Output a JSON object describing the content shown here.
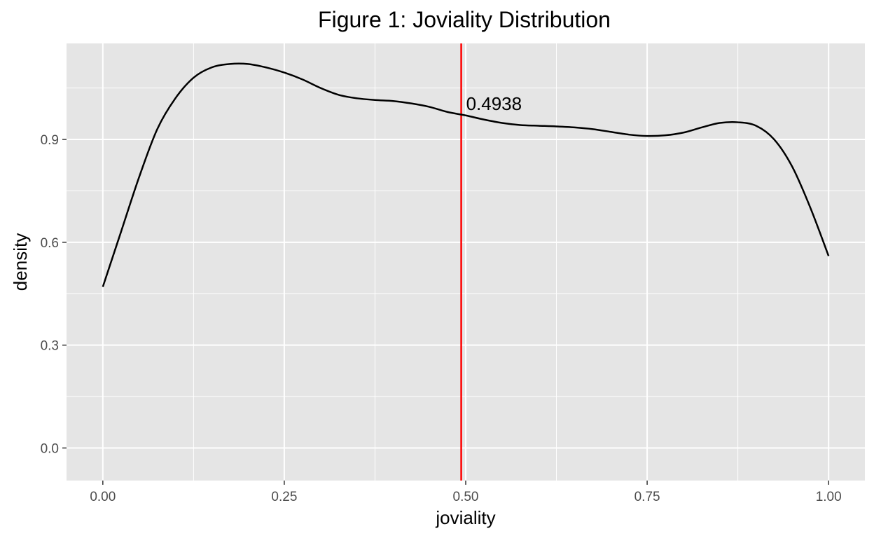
{
  "chart_data": {
    "type": "line",
    "title": "Figure 1: Joviality Distribution",
    "xlabel": "joviality",
    "ylabel": "density",
    "xlim": [
      -0.05,
      1.05
    ],
    "ylim": [
      -0.095,
      1.18
    ],
    "x_ticks": [
      0.0,
      0.25,
      0.5,
      0.75,
      1.0
    ],
    "x_tick_labels": [
      "0.00",
      "0.25",
      "0.50",
      "0.75",
      "1.00"
    ],
    "x_minor_ticks": [
      0.125,
      0.375,
      0.625,
      0.875
    ],
    "y_ticks": [
      0.0,
      0.3,
      0.6,
      0.9
    ],
    "y_tick_labels": [
      "0.0",
      "0.3",
      "0.6",
      "0.9"
    ],
    "y_minor_ticks": [
      0.15,
      0.45,
      0.75,
      1.05
    ],
    "grid": true,
    "series": [
      {
        "x": [
          0.0,
          0.025,
          0.05,
          0.075,
          0.1,
          0.125,
          0.15,
          0.175,
          0.2,
          0.225,
          0.25,
          0.275,
          0.3,
          0.325,
          0.35,
          0.375,
          0.4,
          0.425,
          0.45,
          0.475,
          0.5,
          0.525,
          0.55,
          0.575,
          0.6,
          0.625,
          0.65,
          0.675,
          0.7,
          0.725,
          0.75,
          0.775,
          0.8,
          0.825,
          0.85,
          0.875,
          0.9,
          0.925,
          0.95,
          0.975,
          1.0
        ],
        "y": [
          0.47,
          0.63,
          0.79,
          0.93,
          1.02,
          1.08,
          1.11,
          1.12,
          1.12,
          1.11,
          1.095,
          1.075,
          1.05,
          1.03,
          1.02,
          1.015,
          1.012,
          1.005,
          0.995,
          0.98,
          0.97,
          0.958,
          0.948,
          0.942,
          0.94,
          0.938,
          0.935,
          0.93,
          0.922,
          0.914,
          0.91,
          0.912,
          0.92,
          0.935,
          0.948,
          0.95,
          0.94,
          0.9,
          0.82,
          0.7,
          0.56
        ],
        "color": "#000000"
      }
    ],
    "vline": {
      "x": 0.4938,
      "color": "#ff0000"
    },
    "annotation": {
      "text": "0.4938",
      "x": 0.4938,
      "y": 0.97
    }
  },
  "colors": {
    "panel_background": "#e5e5e5",
    "grid_line": "#ffffff",
    "tick_mark": "#333333"
  }
}
